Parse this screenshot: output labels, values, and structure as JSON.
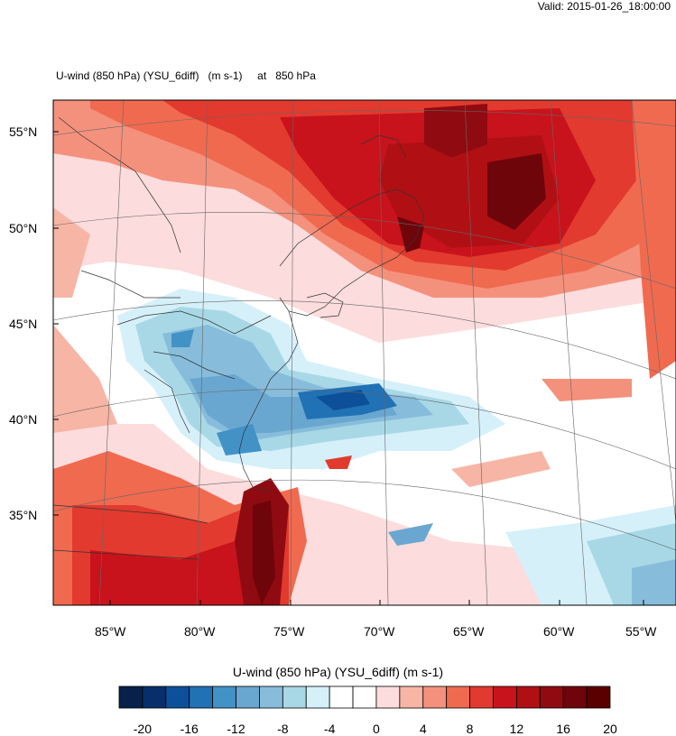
{
  "header": {
    "valid_text": "Valid: 2015-01-26_18:00:00",
    "title_left": "U-wind (850 hPa) (YSU_6diff)   (m s-1)     at   850 hPa"
  },
  "map": {
    "lat_labels": [
      "55°N",
      "50°N",
      "45°N",
      "40°N",
      "35°N"
    ],
    "lon_labels": [
      "85°W",
      "80°W",
      "75°W",
      "70°W",
      "65°W",
      "60°W",
      "55°W"
    ]
  },
  "colorbar": {
    "title": "U-wind (850 hPa) (YSU_6diff)  (m s-1)",
    "ticks": [
      "-20",
      "-16",
      "-12",
      "-8",
      "-4",
      "0",
      "4",
      "8",
      "12",
      "16",
      "20"
    ],
    "colors": [
      "#08214a",
      "#082f6b",
      "#0d4f99",
      "#2171b5",
      "#4292c6",
      "#6aa7d0",
      "#87bddb",
      "#a8d8e6",
      "#d6f0fa",
      "#ffffff",
      "#ffffff",
      "#fcdcdc",
      "#f7b5a5",
      "#f4917c",
      "#f06a50",
      "#e23a2e",
      "#c8131c",
      "#b01014",
      "#8f0b11",
      "#6e050a",
      "#5a0000"
    ],
    "color_names": [
      "negative-dark-blue",
      "neutral-white",
      "positive-dark-red"
    ]
  }
}
